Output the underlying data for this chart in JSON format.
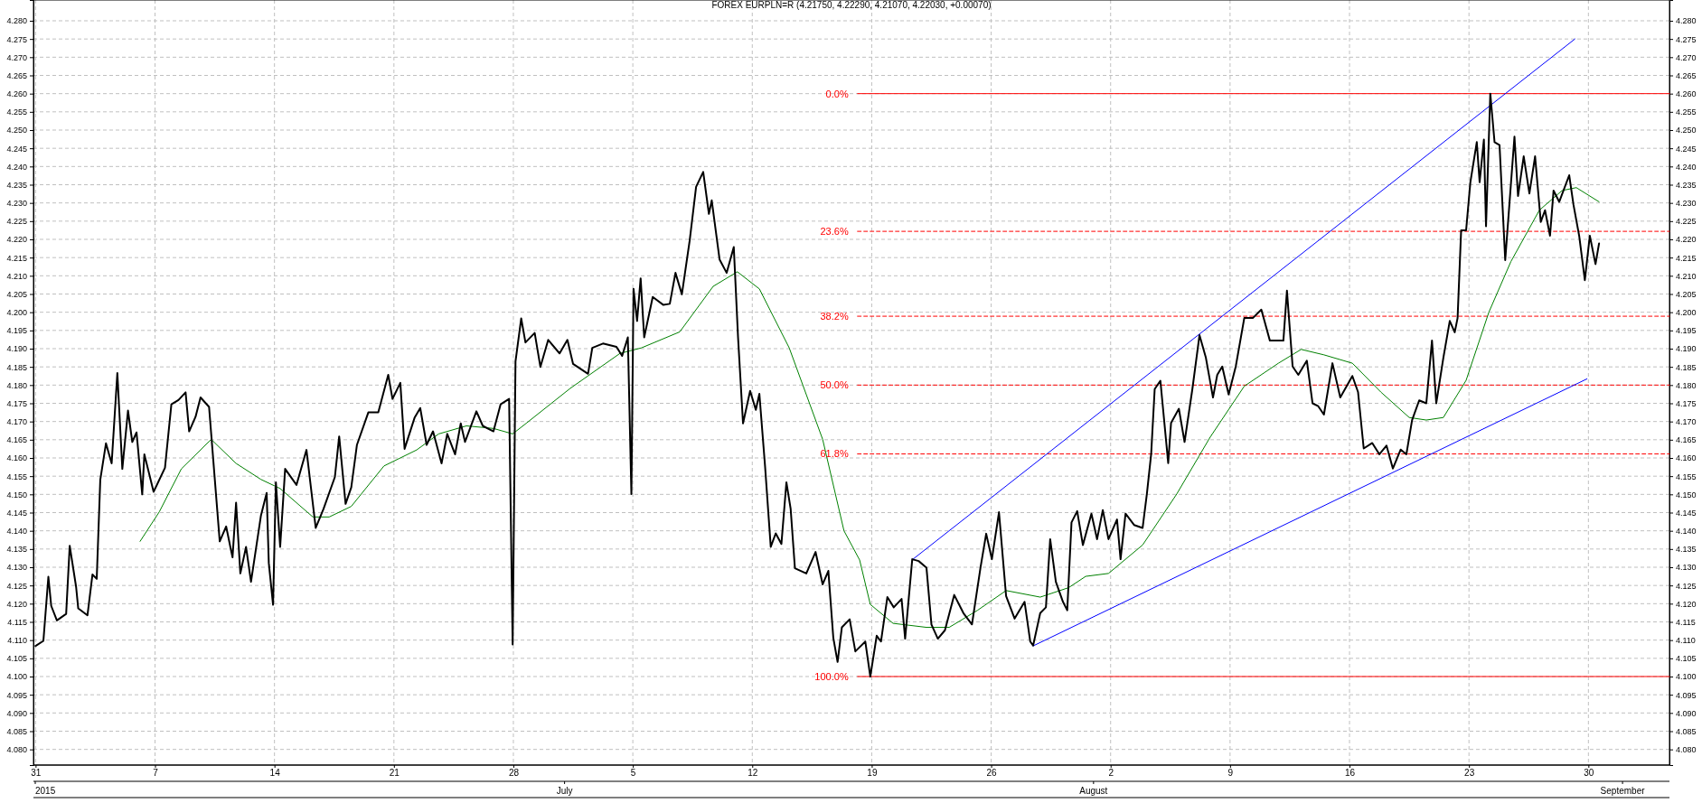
{
  "chart_data": {
    "type": "line",
    "title": "FOREX EURPLN=R (4.21750, 4.22290, 4.21070, 4.22030, +0.00070)",
    "xlim": [
      "2015-05-30T21:00",
      "2015-09-03T18:00"
    ],
    "xticks": [
      {
        "value": "2015-05-31",
        "label": "31"
      },
      {
        "value": "2015-06-07",
        "label": "7"
      },
      {
        "value": "2015-06-14",
        "label": "14"
      },
      {
        "value": "2015-06-21",
        "label": "21"
      },
      {
        "value": "2015-06-28",
        "label": "28"
      },
      {
        "value": "2015-07-05",
        "label": "5"
      },
      {
        "value": "2015-07-12",
        "label": "12"
      },
      {
        "value": "2015-07-19",
        "label": "19"
      },
      {
        "value": "2015-07-26",
        "label": "26"
      },
      {
        "value": "2015-08-02",
        "label": "2"
      },
      {
        "value": "2015-08-09",
        "label": "9"
      },
      {
        "value": "2015-08-16",
        "label": "16"
      },
      {
        "value": "2015-08-23",
        "label": "23"
      },
      {
        "value": "2015-08-30",
        "label": "30"
      }
    ],
    "ylim": [
      4.0757,
      4.2857
    ],
    "yticks": [
      {
        "value": 4.08,
        "label": "4.080"
      },
      {
        "value": 4.085,
        "label": "4.085"
      },
      {
        "value": 4.09,
        "label": "4.090"
      },
      {
        "value": 4.095,
        "label": "4.095"
      },
      {
        "value": 4.1,
        "label": "4.100"
      },
      {
        "value": 4.105,
        "label": "4.105"
      },
      {
        "value": 4.11,
        "label": "4.110"
      },
      {
        "value": 4.115,
        "label": "4.115"
      },
      {
        "value": 4.12,
        "label": "4.120"
      },
      {
        "value": 4.125,
        "label": "4.125"
      },
      {
        "value": 4.13,
        "label": "4.130"
      },
      {
        "value": 4.135,
        "label": "4.135"
      },
      {
        "value": 4.14,
        "label": "4.140"
      },
      {
        "value": 4.145,
        "label": "4.145"
      },
      {
        "value": 4.15,
        "label": "4.150"
      },
      {
        "value": 4.155,
        "label": "4.155"
      },
      {
        "value": 4.16,
        "label": "4.160"
      },
      {
        "value": 4.165,
        "label": "4.165"
      },
      {
        "value": 4.17,
        "label": "4.170"
      },
      {
        "value": 4.175,
        "label": "4.175"
      },
      {
        "value": 4.18,
        "label": "4.180"
      },
      {
        "value": 4.185,
        "label": "4.185"
      },
      {
        "value": 4.19,
        "label": "4.190"
      },
      {
        "value": 4.195,
        "label": "4.195"
      },
      {
        "value": 4.2,
        "label": "4.200"
      },
      {
        "value": 4.205,
        "label": "4.205"
      },
      {
        "value": 4.21,
        "label": "4.210"
      },
      {
        "value": 4.215,
        "label": "4.215"
      },
      {
        "value": 4.22,
        "label": "4.220"
      },
      {
        "value": 4.225,
        "label": "4.225"
      },
      {
        "value": 4.23,
        "label": "4.230"
      },
      {
        "value": 4.235,
        "label": "4.235"
      },
      {
        "value": 4.24,
        "label": "4.240"
      },
      {
        "value": 4.245,
        "label": "4.245"
      },
      {
        "value": 4.25,
        "label": "4.250"
      },
      {
        "value": 4.255,
        "label": "4.255"
      },
      {
        "value": 4.26,
        "label": "4.260"
      },
      {
        "value": 4.265,
        "label": "4.265"
      },
      {
        "value": 4.27,
        "label": "4.270"
      },
      {
        "value": 4.275,
        "label": "4.275"
      },
      {
        "value": 4.28,
        "label": "4.280"
      }
    ],
    "y2lim": [
      4.0757,
      4.2857
    ],
    "y2ticks": [
      {
        "value": 4.08,
        "label": "4.080"
      },
      {
        "value": 4.085,
        "label": "4.085"
      },
      {
        "value": 4.09,
        "label": "4.090"
      },
      {
        "value": 4.095,
        "label": "4.095"
      },
      {
        "value": 4.1,
        "label": "4.100"
      },
      {
        "value": 4.105,
        "label": "4.105"
      },
      {
        "value": 4.11,
        "label": "4.110"
      },
      {
        "value": 4.115,
        "label": "4.115"
      },
      {
        "value": 4.12,
        "label": "4.120"
      },
      {
        "value": 4.125,
        "label": "4.125"
      },
      {
        "value": 4.13,
        "label": "4.130"
      },
      {
        "value": 4.135,
        "label": "4.135"
      },
      {
        "value": 4.14,
        "label": "4.140"
      },
      {
        "value": 4.145,
        "label": "4.145"
      },
      {
        "value": 4.15,
        "label": "4.150"
      },
      {
        "value": 4.155,
        "label": "4.155"
      },
      {
        "value": 4.16,
        "label": "4.160"
      },
      {
        "value": 4.165,
        "label": "4.165"
      },
      {
        "value": 4.17,
        "label": "4.170"
      },
      {
        "value": 4.175,
        "label": "4.175"
      },
      {
        "value": 4.18,
        "label": "4.180"
      },
      {
        "value": 4.185,
        "label": "4.185"
      },
      {
        "value": 4.19,
        "label": "4.190"
      },
      {
        "value": 4.195,
        "label": "4.195"
      },
      {
        "value": 4.2,
        "label": "4.200"
      },
      {
        "value": 4.205,
        "label": "4.205"
      },
      {
        "value": 4.21,
        "label": "4.210"
      },
      {
        "value": 4.215,
        "label": "4.215"
      },
      {
        "value": 4.22,
        "label": "4.220"
      },
      {
        "value": 4.225,
        "label": "4.225"
      },
      {
        "value": 4.23,
        "label": "4.230"
      },
      {
        "value": 4.235,
        "label": "4.235"
      },
      {
        "value": 4.24,
        "label": "4.240"
      },
      {
        "value": 4.245,
        "label": "4.245"
      },
      {
        "value": 4.25,
        "label": "4.250"
      },
      {
        "value": 4.255,
        "label": "4.255"
      },
      {
        "value": 4.26,
        "label": "4.260"
      },
      {
        "value": 4.265,
        "label": "4.265"
      },
      {
        "value": 4.27,
        "label": "4.270"
      },
      {
        "value": 4.275,
        "label": "4.275"
      },
      {
        "value": 4.28,
        "label": "4.280"
      }
    ],
    "grid": true,
    "line_style": "solid",
    "series": [
      {
        "color": "#ff0000",
        "line_style": "solid",
        "x": [
          "2015-07-18T04:00",
          "2015-09-03T18:00"
        ],
        "values": [
          4.26,
          4.26
        ]
      },
      {
        "color": "#ff0000",
        "line_style": "dashed",
        "x": [
          "2015-07-18T04:00",
          "2015-09-03T18:00"
        ],
        "values": [
          4.2222,
          4.2222
        ]
      },
      {
        "color": "#ff0000",
        "line_style": "dashed",
        "x": [
          "2015-07-18T04:00",
          "2015-09-03T18:00"
        ],
        "values": [
          4.1989,
          4.1989
        ]
      },
      {
        "color": "#ff0000",
        "line_style": "dashed",
        "x": [
          "2015-07-18T04:00",
          "2015-09-03T18:00"
        ],
        "values": [
          4.18,
          4.18
        ]
      },
      {
        "color": "#ff0000",
        "line_style": "dashed",
        "x": [
          "2015-07-18T04:00",
          "2015-09-03T18:00"
        ],
        "values": [
          4.1611,
          4.1611
        ]
      },
      {
        "color": "#ff0000",
        "line_style": "solid",
        "x": [
          "2015-07-18T04:00",
          "2015-09-03T18:00"
        ],
        "values": [
          4.1,
          4.1
        ]
      },
      {
        "color": "#0000ff",
        "x": [
          "2015-07-21T10:00",
          "2015-08-29T05:00"
        ],
        "values": [
          4.1322,
          4.275
        ]
      },
      {
        "color": "#0000ff",
        "x": [
          "2015-07-28T11:00",
          "2015-08-29T22:00"
        ],
        "values": [
          4.1084,
          4.1817
        ]
      },
      {
        "color": "#008000",
        "x": [
          "2015-06-06T03:00",
          "2015-06-07T06:00",
          "2015-06-08T13:00",
          "2015-06-10T07:00",
          "2015-06-11T18:00",
          "2015-06-13T05:00",
          "2015-06-14T08:00",
          "2015-06-16T06:00",
          "2015-06-17T05:00",
          "2015-06-18T12:00",
          "2015-06-20T10:00",
          "2015-06-22T08:00",
          "2015-06-23T15:00",
          "2015-06-25T06:00",
          "2015-06-26T20:00",
          "2015-06-27T23:00",
          "2015-06-28T18:00",
          "2015-07-01T08:00",
          "2015-07-04T06:00",
          "2015-07-05T12:00",
          "2015-07-07T18:00",
          "2015-07-09T17:00",
          "2015-07-11T03:00",
          "2015-07-12T10:00",
          "2015-07-14T04:00",
          "2015-07-16T03:00",
          "2015-07-17T09:00",
          "2015-07-18T07:00",
          "2015-07-18T22:00",
          "2015-07-20T06:00",
          "2015-07-22T05:00",
          "2015-07-23T13:00",
          "2015-07-25T05:00",
          "2015-07-26T21:00",
          "2015-07-28T21:00",
          "2015-07-30T13:00",
          "2015-07-31T13:00",
          "2015-08-01T21:00",
          "2015-08-03T21:00",
          "2015-08-05T21:00",
          "2015-08-07T20:00",
          "2015-08-09T20:00",
          "2015-08-11T20:00",
          "2015-08-13T04:00",
          "2015-08-14T12:00",
          "2015-08-16T04:00",
          "2015-08-17T20:00",
          "2015-08-19T12:00",
          "2015-08-20T12:00",
          "2015-08-21T12:00",
          "2015-08-22T20:00",
          "2015-08-24T04:00",
          "2015-08-25T11:00",
          "2015-08-27T03:00",
          "2015-08-28T11:00",
          "2015-08-29T07:00",
          "2015-08-30T15:00"
        ],
        "values": [
          4.1371,
          4.1452,
          4.157,
          4.1651,
          4.1585,
          4.1541,
          4.1516,
          4.1438,
          4.1438,
          4.1467,
          4.1578,
          4.1622,
          4.1666,
          4.1688,
          4.1681,
          4.1666,
          4.1695,
          4.1791,
          4.1887,
          4.1902,
          4.1946,
          4.2071,
          4.2111,
          4.2064,
          4.1902,
          4.1651,
          4.14,
          4.132,
          4.1198,
          4.1146,
          4.1135,
          4.1135,
          4.1182,
          4.1236,
          4.1218,
          4.1244,
          4.1275,
          4.1283,
          4.1361,
          4.1501,
          4.1657,
          4.1797,
          4.186,
          4.1898,
          4.1883,
          4.186,
          4.1781,
          4.1711,
          4.1704,
          4.1711,
          4.1813,
          4.2,
          4.2139,
          4.228,
          4.2334,
          4.2342,
          4.2303
        ]
      },
      {
        "color": "#000000",
        "x": [
          "2015-05-31T00:00",
          "2015-05-31T11:00",
          "2015-05-31T18:00",
          "2015-05-31T22:00",
          "2015-06-01T06:00",
          "2015-06-01T19:00",
          "2015-06-02T00:00",
          "2015-06-02T09:00",
          "2015-06-02T12:00",
          "2015-06-03T01:00",
          "2015-06-03T08:00",
          "2015-06-03T14:00",
          "2015-06-03T19:00",
          "2015-06-04T03:00",
          "2015-06-04T11:00",
          "2015-06-04T19:00",
          "2015-06-05T02:00",
          "2015-06-05T10:00",
          "2015-06-05T16:00",
          "2015-06-05T22:00",
          "2015-06-06T06:00",
          "2015-06-06T09:00",
          "2015-06-06T22:00",
          "2015-06-07T14:00",
          "2015-06-07T23:00",
          "2015-06-08T09:00",
          "2015-06-08T19:00",
          "2015-06-09T00:00",
          "2015-06-09T09:00",
          "2015-06-09T16:00",
          "2015-06-10T04:00",
          "2015-06-10T19:00",
          "2015-06-11T04:00",
          "2015-06-11T13:00",
          "2015-06-11T18:00",
          "2015-06-12T00:00",
          "2015-06-12T08:00",
          "2015-06-12T15:00",
          "2015-06-13T05:00",
          "2015-06-13T13:00",
          "2015-06-13T16:00",
          "2015-06-13T22:00",
          "2015-06-14T02:00",
          "2015-06-14T08:00",
          "2015-06-14T15:00",
          "2015-06-15T07:00",
          "2015-06-15T21:00",
          "2015-06-16T10:00",
          "2015-06-16T21:00",
          "2015-06-17T13:00",
          "2015-06-17T19:00",
          "2015-06-18T04:00",
          "2015-06-18T12:00",
          "2015-06-18T20:00",
          "2015-06-19T12:00",
          "2015-06-20T02:00",
          "2015-06-20T16:00",
          "2015-06-20T22:00",
          "2015-06-21T09:00",
          "2015-06-21T15:00",
          "2015-06-22T05:00",
          "2015-06-22T13:00",
          "2015-06-22T22:00",
          "2015-06-23T07:00",
          "2015-06-23T19:00",
          "2015-06-24T03:00",
          "2015-06-24T14:00",
          "2015-06-24T22:00",
          "2015-06-25T04:00",
          "2015-06-25T20:00",
          "2015-06-26T05:00",
          "2015-06-26T20:00",
          "2015-06-27T06:00",
          "2015-06-27T18:00",
          "2015-06-27T23:00",
          "2015-06-28T03:00",
          "2015-06-28T11:00",
          "2015-06-28T17:00",
          "2015-06-29T06:00",
          "2015-06-29T14:00",
          "2015-06-30T01:00",
          "2015-06-30T17:00",
          "2015-07-01T04:00",
          "2015-07-01T12:00",
          "2015-07-02T09:00",
          "2015-07-02T15:00",
          "2015-07-03T06:00",
          "2015-07-04T01:00",
          "2015-07-04T09:00",
          "2015-07-04T17:00",
          "2015-07-04T22:00",
          "2015-07-05T01:00",
          "2015-07-05T06:00",
          "2015-07-05T11:00",
          "2015-07-05T16:00",
          "2015-07-06T04:00",
          "2015-07-06T19:00",
          "2015-07-07T04:00",
          "2015-07-07T12:00",
          "2015-07-07T21:00",
          "2015-07-08T08:00",
          "2015-07-08T17:00",
          "2015-07-09T03:00",
          "2015-07-09T11:00",
          "2015-07-09T15:00",
          "2015-07-10T02:00",
          "2015-07-10T12:00",
          "2015-07-10T22:00",
          "2015-07-11T04:00",
          "2015-07-11T11:00",
          "2015-07-11T21:00",
          "2015-07-12T05:00",
          "2015-07-12T10:00",
          "2015-07-12T18:00",
          "2015-07-13T02:00",
          "2015-07-13T09:00",
          "2015-07-13T17:00",
          "2015-07-14T00:00",
          "2015-07-14T06:00",
          "2015-07-14T12:00",
          "2015-07-15T04:00",
          "2015-07-15T17:00",
          "2015-07-16T03:00",
          "2015-07-16T11:00",
          "2015-07-16T18:00",
          "2015-07-17T00:00",
          "2015-07-17T06:00",
          "2015-07-17T17:00",
          "2015-07-18T01:00",
          "2015-07-18T15:00",
          "2015-07-18T22:00",
          "2015-07-19T07:00",
          "2015-07-19T13:00",
          "2015-07-19T22:00",
          "2015-07-20T07:00",
          "2015-07-20T18:00",
          "2015-07-20T23:00",
          "2015-07-21T09:00",
          "2015-07-21T18:00",
          "2015-07-22T05:00",
          "2015-07-22T12:00",
          "2015-07-22T21:00",
          "2015-07-23T07:00",
          "2015-07-23T20:00",
          "2015-07-24T09:00",
          "2015-07-24T21:00",
          "2015-07-25T09:00",
          "2015-07-25T17:00",
          "2015-07-26T01:00",
          "2015-07-26T11:00",
          "2015-07-26T21:00",
          "2015-07-27T09:00",
          "2015-07-27T23:00",
          "2015-07-28T07:00",
          "2015-07-28T11:00",
          "2015-07-28T21:00",
          "2015-07-29T05:00",
          "2015-07-29T11:00",
          "2015-07-29T19:00",
          "2015-07-30T05:00",
          "2015-07-30T11:00",
          "2015-07-30T17:00",
          "2015-07-31T01:00",
          "2015-07-31T09:00",
          "2015-07-31T21:00",
          "2015-08-01T05:00",
          "2015-08-01T13:00",
          "2015-08-01T21:00",
          "2015-08-02T09:00",
          "2015-08-02T14:00",
          "2015-08-02T21:00",
          "2015-08-03T09:00",
          "2015-08-03T21:00",
          "2015-08-04T03:00",
          "2015-08-04T09:00",
          "2015-08-04T14:00",
          "2015-08-04T22:00",
          "2015-08-05T09:00",
          "2015-08-05T13:00",
          "2015-08-06T00:00",
          "2015-08-06T08:00",
          "2015-08-06T19:00",
          "2015-08-07T05:00",
          "2015-08-07T14:00",
          "2015-08-08T00:00",
          "2015-08-08T06:00",
          "2015-08-08T13:00",
          "2015-08-08T22:00",
          "2015-08-09T08:00",
          "2015-08-09T20:00",
          "2015-08-10T08:00",
          "2015-08-10T20:00",
          "2015-08-11T08:00",
          "2015-08-11T16:00",
          "2015-08-12T03:00",
          "2015-08-12T08:00",
          "2015-08-12T16:00",
          "2015-08-13T00:00",
          "2015-08-13T12:00",
          "2015-08-13T20:00",
          "2015-08-14T04:00",
          "2015-08-14T12:00",
          "2015-08-15T00:00",
          "2015-08-15T11:00",
          "2015-08-15T20:00",
          "2015-08-16T04:00",
          "2015-08-16T12:00",
          "2015-08-16T20:00",
          "2015-08-17T08:00",
          "2015-08-17T18:00",
          "2015-08-18T04:00",
          "2015-08-18T13:00",
          "2015-08-19T00:00",
          "2015-08-19T08:00",
          "2015-08-19T16:00",
          "2015-08-20T02:00",
          "2015-08-20T12:00",
          "2015-08-20T20:00",
          "2015-08-21T02:00",
          "2015-08-21T12:00",
          "2015-08-21T21:00",
          "2015-08-22T04:00",
          "2015-08-22T08:00",
          "2015-08-22T13:00",
          "2015-08-22T20:00",
          "2015-08-23T02:00",
          "2015-08-23T11:00",
          "2015-08-23T15:00",
          "2015-08-23T21:00",
          "2015-08-24T00:00",
          "2015-08-24T06:00",
          "2015-08-24T12:00",
          "2015-08-24T19:00",
          "2015-08-25T03:00",
          "2015-08-25T16:00",
          "2015-08-25T21:00",
          "2015-08-26T05:00",
          "2015-08-26T13:00",
          "2015-08-26T21:00",
          "2015-08-27T05:00",
          "2015-08-27T11:00",
          "2015-08-27T18:00",
          "2015-08-27T23:00",
          "2015-08-28T07:00",
          "2015-08-28T21:00",
          "2015-08-29T03:00",
          "2015-08-29T11:00",
          "2015-08-29T19:00",
          "2015-08-30T02:00",
          "2015-08-30T10:00",
          "2015-08-30T15:00"
        ],
        "values": [
          4.1084,
          4.1098,
          4.1274,
          4.1194,
          4.1154,
          4.1172,
          4.1359,
          4.1246,
          4.1187,
          4.1168,
          4.128,
          4.1268,
          4.154,
          4.164,
          4.1585,
          4.1833,
          4.157,
          4.173,
          4.1644,
          4.167,
          4.15,
          4.161,
          4.1507,
          4.1573,
          4.1747,
          4.1759,
          4.178,
          4.1673,
          4.1713,
          4.1766,
          4.174,
          4.1371,
          4.1412,
          4.1327,
          4.1477,
          4.1283,
          4.1356,
          4.126,
          4.1442,
          4.1504,
          4.1312,
          4.1197,
          4.1533,
          4.1356,
          4.157,
          4.1526,
          4.1622,
          4.1408,
          4.146,
          4.1548,
          4.1659,
          4.1474,
          4.1519,
          4.1636,
          4.1725,
          4.1725,
          4.1828,
          4.1762,
          4.1806,
          4.1625,
          4.171,
          4.1737,
          4.1636,
          4.1673,
          4.1585,
          4.1666,
          4.161,
          4.1695,
          4.1644,
          4.1728,
          4.1688,
          4.1673,
          4.1747,
          4.1762,
          4.1088,
          4.1865,
          4.1983,
          4.1917,
          4.1943,
          4.185,
          4.1924,
          4.1887,
          4.1924,
          4.1858,
          4.1831,
          4.1902,
          4.1914,
          4.1905,
          4.188,
          4.1931,
          4.1501,
          4.2064,
          4.1976,
          4.2093,
          4.1931,
          4.2042,
          4.202,
          4.2023,
          4.2108,
          4.2049,
          4.2197,
          4.2344,
          4.2385,
          4.227,
          4.2307,
          4.2145,
          4.2108,
          4.2179,
          4.1931,
          4.1695,
          4.1784,
          4.1732,
          4.1776,
          4.1577,
          4.1356,
          4.1393,
          4.1364,
          4.1533,
          4.146,
          4.1297,
          4.1283,
          4.1342,
          4.1253,
          4.129,
          4.1106,
          4.104,
          4.1135,
          4.1157,
          4.1069,
          4.1096,
          4.1,
          4.1112,
          4.1096,
          4.1218,
          4.119,
          4.1213,
          4.1104,
          4.1322,
          4.1317,
          4.1299,
          4.1143,
          4.1104,
          4.1127,
          4.1224,
          4.1174,
          4.1143,
          4.1299,
          4.1392,
          4.1322,
          4.1451,
          4.1221,
          4.1159,
          4.1205,
          4.1096,
          4.1085,
          4.1174,
          4.119,
          4.1377,
          4.126,
          4.1205,
          4.1182,
          4.1423,
          4.1454,
          4.1361,
          4.1447,
          4.1377,
          4.1457,
          4.1377,
          4.1431,
          4.1322,
          4.1447,
          4.1416,
          4.1408,
          4.1501,
          4.161,
          4.1789,
          4.1812,
          4.1586,
          4.1696,
          4.1735,
          4.1644,
          4.1789,
          4.1937,
          4.1875,
          4.1766,
          4.1828,
          4.1851,
          4.1774,
          4.1851,
          4.1984,
          4.1984,
          4.2007,
          4.1922,
          4.1922,
          4.1922,
          4.2059,
          4.1851,
          4.1828,
          4.1867,
          4.175,
          4.1742,
          4.1719,
          4.186,
          4.1766,
          4.1797,
          4.1825,
          4.1781,
          4.1626,
          4.1641,
          4.161,
          4.1634,
          4.1571,
          4.1623,
          4.161,
          4.1704,
          4.1758,
          4.175,
          4.1922,
          4.175,
          4.1875,
          4.1976,
          4.1945,
          4.1984,
          4.2225,
          4.2225,
          4.2357,
          4.2467,
          4.2357,
          4.2474,
          4.2236,
          4.26,
          4.2467,
          4.2459,
          4.2143,
          4.2482,
          4.2319,
          4.2428,
          4.2326,
          4.2428,
          4.2248,
          4.228,
          4.221,
          4.2334,
          4.2303,
          4.2376,
          4.2295,
          4.221,
          4.2088,
          4.221,
          4.2132,
          4.2189
        ]
      }
    ],
    "annotations": [
      "2015",
      "July",
      "August",
      "September",
      {
        "text": "0.0%",
        "x": "2015-07-18T04:00",
        "y": 4.26
      },
      {
        "text": "23.6%",
        "x": "2015-07-18T04:00",
        "y": 4.2222
      },
      {
        "text": "38.2%",
        "x": "2015-07-18T04:00",
        "y": 4.1989
      },
      {
        "text": "50.0%",
        "x": "2015-07-18T04:00",
        "y": 4.18
      },
      {
        "text": "61.8%",
        "x": "2015-07-18T04:00",
        "y": 4.1611
      },
      {
        "text": "100.0%",
        "x": "2015-07-18T04:00",
        "y": 4.1
      }
    ]
  }
}
